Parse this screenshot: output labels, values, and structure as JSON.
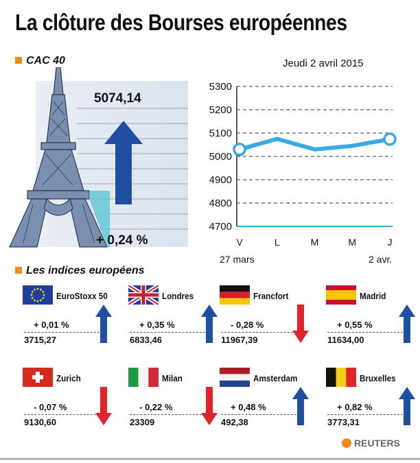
{
  "title": "La clôture des Bourses européennes",
  "cac": {
    "section_label": "CAC 40",
    "value": "5074,14",
    "change": "+ 0,24 %",
    "direction": "up"
  },
  "date": "Jeudi 2 avril 2015",
  "chart_data": {
    "type": "line",
    "categories": [
      "V",
      "L",
      "M",
      "M",
      "J"
    ],
    "values": [
      5030,
      5075,
      5030,
      5045,
      5074
    ],
    "ylim": [
      4700,
      5300
    ],
    "yticks": [
      "5300",
      "5200",
      "5100",
      "5000",
      "4900",
      "4800",
      "4700"
    ],
    "x_range_labels": {
      "start": "27 mars",
      "end": "2 avr."
    },
    "grid": true,
    "line_color": "#3ba9e6"
  },
  "indices_section_label": "Les indices européens",
  "indices": [
    {
      "name": "EuroStoxx 50",
      "flag": "eu",
      "change": "+ 0,01 %",
      "value": "3715,27",
      "direction": "up"
    },
    {
      "name": "Londres",
      "flag": "uk",
      "change": "+ 0,35 %",
      "value": "6833,46",
      "direction": "up"
    },
    {
      "name": "Francfort",
      "flag": "de",
      "change": "- 0,28 %",
      "value": "11967,39",
      "direction": "down"
    },
    {
      "name": "Madrid",
      "flag": "es",
      "change": "+ 0,55 %",
      "value": "11634,00",
      "direction": "up"
    },
    {
      "name": "Zurich",
      "flag": "ch",
      "change": "- 0,07 %",
      "value": "9130,60",
      "direction": "down"
    },
    {
      "name": "Milan",
      "flag": "it",
      "change": "- 0,22 %",
      "value": "23309",
      "direction": "down"
    },
    {
      "name": "Amsterdam",
      "flag": "nl",
      "change": "+ 0,48 %",
      "value": "492,38",
      "direction": "up"
    },
    {
      "name": "Bruxelles",
      "flag": "be",
      "change": "+ 0,82 %",
      "value": "3773,31",
      "direction": "up"
    }
  ],
  "source": "REUTERS",
  "colors": {
    "up": "#1f4ea3",
    "down": "#e0242a",
    "accent": "#f08a1c"
  }
}
